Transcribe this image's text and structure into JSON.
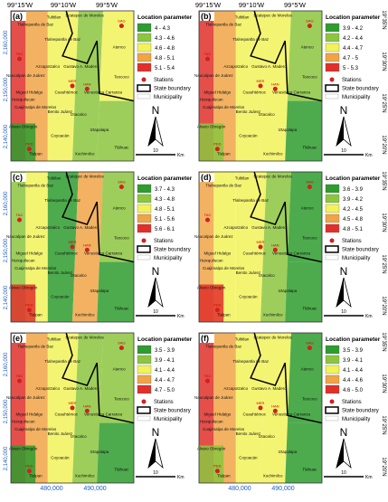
{
  "figure": {
    "top_labels": [
      "99°15'W",
      "99°10'W",
      "99°5'W"
    ],
    "right_labels": [
      "19°35'N",
      "19°30'N",
      "19°25'N",
      "19°20'N"
    ],
    "left_labels": [
      "2,160,000",
      "2,150,000",
      "2,140,000"
    ],
    "bottom_labels": [
      "480,000",
      "490,000"
    ],
    "legend_items": [
      "Stations",
      "State boundary",
      "Municipality"
    ],
    "north": "N",
    "scale_number": "10",
    "scale_unit": "Km",
    "stations": [
      "SAG",
      "TAC",
      "MER",
      "HAN",
      "PED"
    ],
    "municipalities": [
      "Tultitlan",
      "Ecatepec de Morelos",
      "Tlalnepantla de Baz",
      "Tlalnepantla de Baz",
      "Azcapotzalco",
      "Gustavo A. Madero",
      "Atenco",
      "Naucalpan de Juárez",
      "Texcoco",
      "Miguel Hidalgo",
      "Cuauhtémoc",
      "Venustiano Carranza",
      "Huixquilucan",
      "Cuajimalpa de Morelos",
      "Benito Juárez",
      "Iztacalco",
      "Álvaro Obregón",
      "Iztapalapa",
      "Coyoacán",
      "Xochimilco",
      "Tlalpan",
      "Tláhuac"
    ],
    "panels": [
      {
        "letter": "(a)",
        "legend_title": "Location parameter",
        "classes": [
          {
            "label": "4 - 4.3",
            "color": "#2e9c2e"
          },
          {
            "label": "4.3 - 4.6",
            "color": "#8cc63e"
          },
          {
            "label": "4.6 - 4.8",
            "color": "#f2f25a"
          },
          {
            "label": "4.8 - 5.1",
            "color": "#f0a446"
          },
          {
            "label": "5.1 - 5.4",
            "color": "#e0302a"
          }
        ]
      },
      {
        "letter": "(b)",
        "legend_title": "Location parameter",
        "classes": [
          {
            "label": "3.9 - 4.2",
            "color": "#2e9c2e"
          },
          {
            "label": "4.2 - 4.4",
            "color": "#8cc63e"
          },
          {
            "label": "4.4 - 4.7",
            "color": "#f2f25a"
          },
          {
            "label": "4.7 - 5",
            "color": "#f0a446"
          },
          {
            "label": "5 - 5.3",
            "color": "#e0302a"
          }
        ]
      },
      {
        "letter": "(c)",
        "legend_title": "Location parameter",
        "classes": [
          {
            "label": "3.7 - 4.3",
            "color": "#2e9c2e"
          },
          {
            "label": "4.3 - 4.8",
            "color": "#8cc63e"
          },
          {
            "label": "4.8 - 5.1",
            "color": "#f2f25a"
          },
          {
            "label": "5.1 - 5.6",
            "color": "#f0a446"
          },
          {
            "label": "5.6 - 6.1",
            "color": "#e0302a"
          }
        ]
      },
      {
        "letter": "(d)",
        "legend_title": "Location parameter",
        "classes": [
          {
            "label": "3.6 - 3.9",
            "color": "#2e9c2e"
          },
          {
            "label": "3.9 - 4.2",
            "color": "#8cc63e"
          },
          {
            "label": "4.2 - 4.5",
            "color": "#f2f25a"
          },
          {
            "label": "4.5 - 4.8",
            "color": "#f0a446"
          },
          {
            "label": "4.8 - 5.1",
            "color": "#e0302a"
          }
        ]
      },
      {
        "letter": "(e)",
        "legend_title": "Location parameter",
        "classes": [
          {
            "label": "3.5 - 3.9",
            "color": "#2e9c2e"
          },
          {
            "label": "3.9 - 4.1",
            "color": "#8cc63e"
          },
          {
            "label": "4.1 - 4.4",
            "color": "#f2f25a"
          },
          {
            "label": "4.4 - 4.7",
            "color": "#f0a446"
          },
          {
            "label": "4.7 - 5.0",
            "color": "#e0302a"
          }
        ]
      },
      {
        "letter": "(f)",
        "legend_title": "Location parameter",
        "classes": [
          {
            "label": "3.5 - 3.9",
            "color": "#2e9c2e"
          },
          {
            "label": "3.9 - 4.1",
            "color": "#8cc63e"
          },
          {
            "label": "4.1 - 4.4",
            "color": "#f2f25a"
          },
          {
            "label": "4.4 - 4.6",
            "color": "#f0a446"
          },
          {
            "label": "4.6 - 5.0",
            "color": "#e0302a"
          }
        ]
      }
    ]
  }
}
